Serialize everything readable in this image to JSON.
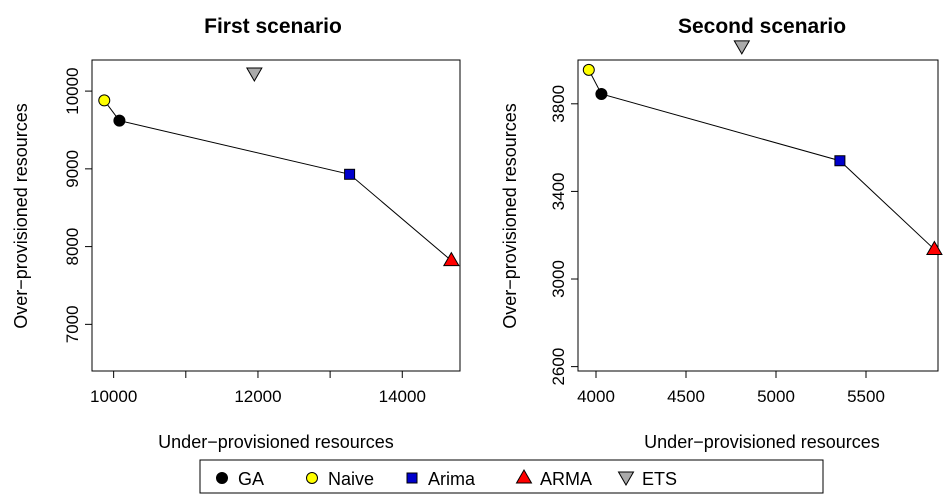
{
  "chart_data": [
    {
      "type": "scatter",
      "title": "First scenario",
      "xlabel": "Under−provisioned resources",
      "ylabel": "Over−provisioned resources",
      "xlim": [
        9700,
        14800
      ],
      "ylim": [
        6400,
        10400
      ],
      "xticks": [
        10000,
        11000,
        12000,
        13000,
        14000
      ],
      "xtick_labels": [
        "10000",
        "",
        "12000",
        "",
        "14000"
      ],
      "yticks": [
        7000,
        8000,
        9000,
        10000
      ],
      "ytick_labels": [
        "7000",
        "8000",
        "9000",
        "10000"
      ],
      "grid": false,
      "points": [
        {
          "series": "GA",
          "x": 10080,
          "y": 9620
        },
        {
          "series": "Naive",
          "x": 9870,
          "y": 9880
        },
        {
          "series": "Arima",
          "x": 13270,
          "y": 8930
        },
        {
          "series": "ARMA",
          "x": 14680,
          "y": 7820
        },
        {
          "series": "ETS",
          "x": 11950,
          "y": 10220
        }
      ],
      "connected_order": [
        "Naive",
        "GA",
        "Arima",
        "ARMA"
      ]
    },
    {
      "type": "scatter",
      "title": "Second scenario",
      "xlabel": "Under−provisioned resources",
      "ylabel": "Over−provisioned resources",
      "xlim": [
        3900,
        5900
      ],
      "ylim": [
        2580,
        4000
      ],
      "xticks": [
        4000,
        4500,
        5000,
        5500
      ],
      "xtick_labels": [
        "4000",
        "4500",
        "5000",
        "5500"
      ],
      "yticks": [
        2600,
        3000,
        3400,
        3800
      ],
      "ytick_labels": [
        "2600",
        "3000",
        "3400",
        "3800"
      ],
      "grid": false,
      "points": [
        {
          "series": "GA",
          "x": 4030,
          "y": 3845
        },
        {
          "series": "Naive",
          "x": 3960,
          "y": 3955
        },
        {
          "series": "Arima",
          "x": 5355,
          "y": 3540
        },
        {
          "series": "ARMA",
          "x": 5880,
          "y": 3135
        },
        {
          "series": "ETS",
          "x": 4810,
          "y": 4060
        }
      ],
      "connected_order": [
        "Naive",
        "GA",
        "Arima",
        "ARMA"
      ]
    }
  ],
  "legend": {
    "placement": "bottom",
    "items": [
      {
        "label": "GA",
        "marker": "circle",
        "color": "#000000"
      },
      {
        "label": "Naive",
        "marker": "circle",
        "color": "#ffff00"
      },
      {
        "label": "Arima",
        "marker": "square",
        "color": "#0000cc"
      },
      {
        "label": "ARMA",
        "marker": "triangle-up",
        "color": "#ff0000"
      },
      {
        "label": "ETS",
        "marker": "triangle-down",
        "color": "#aaaaaa"
      }
    ]
  }
}
